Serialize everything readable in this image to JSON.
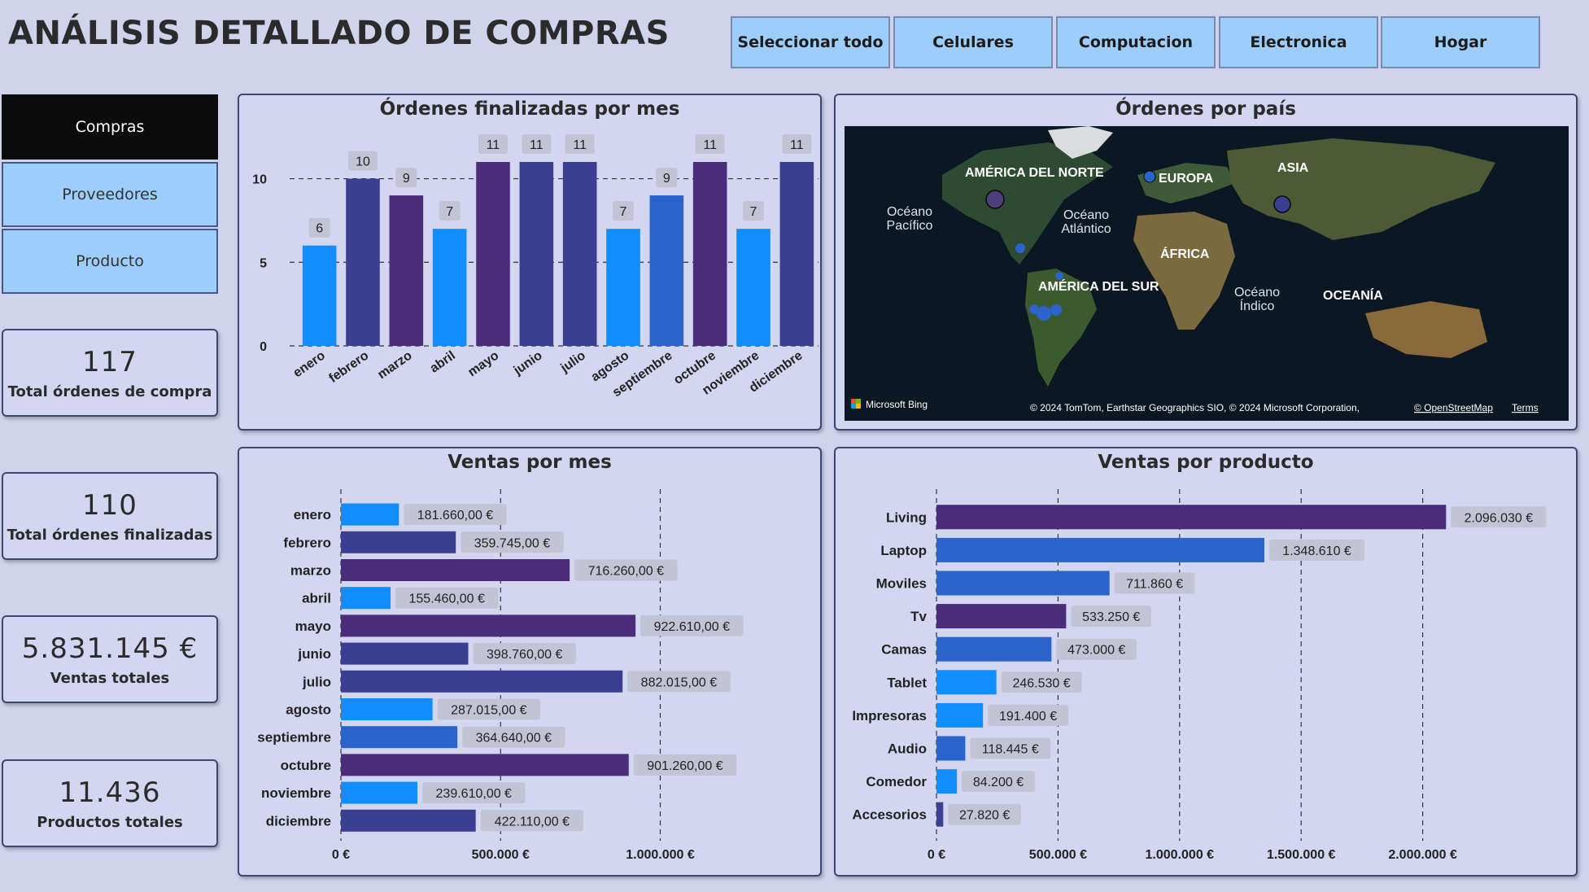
{
  "page": {
    "title": "ANÁLISIS DETALLADO DE COMPRAS"
  },
  "slicers": [
    "Seleccionar todo",
    "Celulares",
    "Computacion",
    "Electronica",
    "Hogar"
  ],
  "nav": [
    {
      "label": "Compras",
      "active": true
    },
    {
      "label": "Proveedores",
      "active": false
    },
    {
      "label": "Producto",
      "active": false
    }
  ],
  "kpis": [
    {
      "value": "117",
      "label": "Total órdenes de compra"
    },
    {
      "value": "110",
      "label": "Total órdenes finalizadas"
    },
    {
      "value": "5.831.145 €",
      "label": "Ventas totales"
    },
    {
      "value": "11.436",
      "label": "Productos totales"
    }
  ],
  "colors": {
    "blue": "#118dff",
    "navy": "#3a3f91",
    "purple": "#4a2c7a",
    "mid": "#2a63c9",
    "bg": "#cfd3ec"
  },
  "chart_data": [
    {
      "type": "bar",
      "title": "Órdenes finalizadas por mes",
      "categories": [
        "enero",
        "febrero",
        "marzo",
        "abril",
        "mayo",
        "junio",
        "julio",
        "agosto",
        "septiembre",
        "octubre",
        "noviembre",
        "diciembre"
      ],
      "values": [
        6,
        10,
        9,
        7,
        11,
        11,
        11,
        7,
        9,
        11,
        7,
        11
      ],
      "colors": [
        "blue",
        "navy",
        "purple",
        "blue",
        "purple",
        "navy",
        "navy",
        "blue",
        "mid",
        "purple",
        "blue",
        "navy"
      ],
      "ylim": [
        0,
        11
      ],
      "yticks": [
        "0",
        "5",
        "10"
      ],
      "grid": true
    },
    {
      "type": "bar",
      "orientation": "horizontal",
      "title": "Ventas por mes",
      "categories": [
        "enero",
        "febrero",
        "marzo",
        "abril",
        "mayo",
        "junio",
        "julio",
        "agosto",
        "septiembre",
        "octubre",
        "noviembre",
        "diciembre"
      ],
      "values": [
        181660,
        359745,
        716260,
        155460,
        922610,
        398760,
        882015,
        287015,
        364640,
        901260,
        239610,
        422110
      ],
      "labels": [
        "181.660,00 €",
        "359.745,00 €",
        "716.260,00 €",
        "155.460,00 €",
        "922.610,00 €",
        "398.760,00 €",
        "882.015,00 €",
        "287.015,00 €",
        "364.640,00 €",
        "901.260,00 €",
        "239.610,00 €",
        "422.110,00 €"
      ],
      "colors": [
        "blue",
        "navy",
        "purple",
        "blue",
        "purple",
        "navy",
        "navy",
        "blue",
        "mid",
        "purple",
        "blue",
        "navy"
      ],
      "xlim": [
        0,
        1200000
      ],
      "xticks": [
        {
          "v": 0,
          "t": "0 €"
        },
        {
          "v": 500000,
          "t": "500.000 €"
        },
        {
          "v": 1000000,
          "t": "1.000.000 €"
        }
      ],
      "grid": true
    },
    {
      "type": "bar",
      "orientation": "horizontal",
      "title": "Ventas por producto",
      "categories": [
        "Living",
        "Laptop",
        "Moviles",
        "Tv",
        "Camas",
        "Tablet",
        "Impresoras",
        "Audio",
        "Comedor",
        "Accesorios"
      ],
      "values": [
        2096030,
        1348610,
        711860,
        533250,
        473000,
        246530,
        191400,
        118445,
        84200,
        27820
      ],
      "labels": [
        "2.096.030 €",
        "1.348.610 €",
        "711.860 €",
        "533.250 €",
        "473.000 €",
        "246.530 €",
        "191.400 €",
        "118.445 €",
        "84.200 €",
        "27.820 €"
      ],
      "colors": [
        "purple",
        "mid",
        "mid",
        "purple",
        "mid",
        "blue",
        "blue",
        "mid",
        "blue",
        "navy"
      ],
      "xlim": [
        0,
        2500000
      ],
      "xticks": [
        {
          "v": 0,
          "t": "0 €"
        },
        {
          "v": 500000,
          "t": "500.000 €"
        },
        {
          "v": 1000000,
          "t": "1.000.000 €"
        },
        {
          "v": 1500000,
          "t": "1.500.000 €"
        },
        {
          "v": 2000000,
          "t": "2.000.000 €"
        }
      ],
      "grid": true
    }
  ],
  "map": {
    "title": "Órdenes por país",
    "labels": [
      "AMÉRICA DEL NORTE",
      "EUROPA",
      "ASIA",
      "Océano",
      "Pacífico",
      "Océano",
      "Atlántico",
      "ÁFRICA",
      "AMÉRICA DEL SUR",
      "Océano",
      "Índico",
      "OCEANÍA"
    ],
    "attribution": "Microsoft Bing",
    "copyright": "© 2024 TomTom, Earthstar Geographics SIO, © 2024 Microsoft Corporation,",
    "osm": "© OpenStreetMap",
    "terms": "Terms"
  }
}
